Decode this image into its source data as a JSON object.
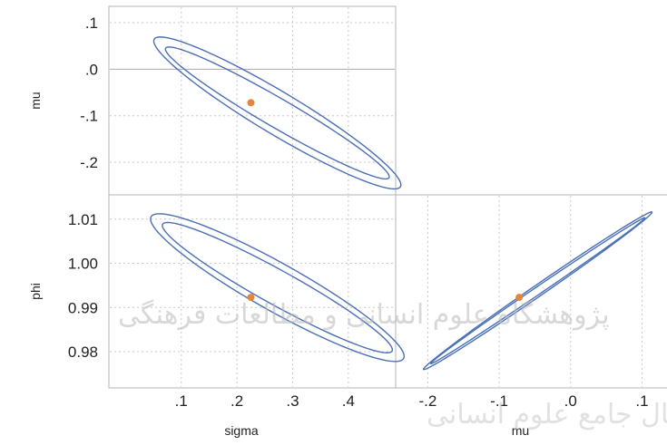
{
  "watermark": {
    "line1": "پژوهشگاه علوم انسانی و مطالعات فرهنگی",
    "line2": "پرتال جامع علوم انسانی"
  },
  "chart_data": [
    {
      "id": "sigma-mu",
      "type": "contour",
      "xlabel": "",
      "ylabel": "mu",
      "xlim": [
        -0.03,
        0.485
      ],
      "ylim": [
        -0.27,
        0.135
      ],
      "yticks": [
        {
          "value": 0.1,
          "label": ".1"
        },
        {
          "value": 0.0,
          "label": ".0"
        },
        {
          "value": -0.1,
          "label": "-.1"
        },
        {
          "value": -0.2,
          "label": "-.2"
        }
      ],
      "xticks": [
        0.1,
        0.2,
        0.3,
        0.4
      ],
      "reference_lines": {
        "y": [
          0.0
        ]
      },
      "point": {
        "x": 0.225,
        "y": -0.072
      },
      "contours": [
        {
          "cx": 0.2725,
          "cy": -0.094,
          "u": [
            0.2,
            -0.14
          ],
          "v": [
            0.02,
            0.022
          ]
        },
        {
          "cx": 0.2725,
          "cy": -0.094,
          "u": [
            0.22,
            -0.16
          ],
          "v": [
            0.029,
            0.032
          ]
        }
      ],
      "colors": {
        "contour": "#4a6fb5",
        "point": "#e8843a",
        "grid": "#c9c9c9"
      }
    },
    {
      "id": "sigma-phi",
      "type": "contour",
      "xlabel": "sigma",
      "ylabel": "phi",
      "xlim": [
        -0.03,
        0.485
      ],
      "ylim": [
        0.9718,
        1.0155
      ],
      "yticks": [
        {
          "value": 1.01,
          "label": "1.01"
        },
        {
          "value": 1.0,
          "label": "1.00"
        },
        {
          "value": 0.99,
          "label": "0.99"
        },
        {
          "value": 0.98,
          "label": "0.98"
        }
      ],
      "xticks": [
        {
          "value": 0.1,
          "label": ".1"
        },
        {
          "value": 0.2,
          "label": ".2"
        },
        {
          "value": 0.3,
          "label": ".3"
        },
        {
          "value": 0.4,
          "label": ".4"
        }
      ],
      "point": {
        "x": 0.225,
        "y": 0.9923
      },
      "contours": [
        {
          "cx": 0.2725,
          "cy": 0.9945,
          "u": [
            0.205,
            -0.0145
          ],
          "v": [
            0.025,
            0.0027
          ]
        },
        {
          "cx": 0.2725,
          "cy": 0.9945,
          "u": [
            0.225,
            -0.0163
          ],
          "v": [
            0.035,
            0.0037
          ]
        }
      ],
      "colors": {
        "contour": "#4a6fb5",
        "point": "#e8843a",
        "grid": "#c9c9c9"
      }
    },
    {
      "id": "mu-phi",
      "type": "contour",
      "xlabel": "mu",
      "ylabel": "",
      "xlim": [
        -0.245,
        0.135
      ],
      "ylim": [
        0.9718,
        1.0155
      ],
      "xticks": [
        {
          "value": -0.2,
          "label": "-.2"
        },
        {
          "value": -0.1,
          "label": "-.1"
        },
        {
          "value": 0.0,
          "label": ".0"
        },
        {
          "value": 0.1,
          "label": ".1"
        }
      ],
      "point": {
        "x": -0.072,
        "y": 0.9923
      },
      "contours": [
        {
          "cx": -0.046,
          "cy": 0.9938,
          "u": [
            0.15,
            0.0165
          ],
          "v": [
            0.002,
            -0.0008
          ]
        },
        {
          "cx": -0.046,
          "cy": 0.9938,
          "u": [
            0.16,
            0.0178
          ],
          "v": [
            0.003,
            -0.0012
          ]
        }
      ],
      "colors": {
        "contour": "#4a6fb5",
        "point": "#e8843a",
        "grid": "#c9c9c9"
      }
    }
  ]
}
